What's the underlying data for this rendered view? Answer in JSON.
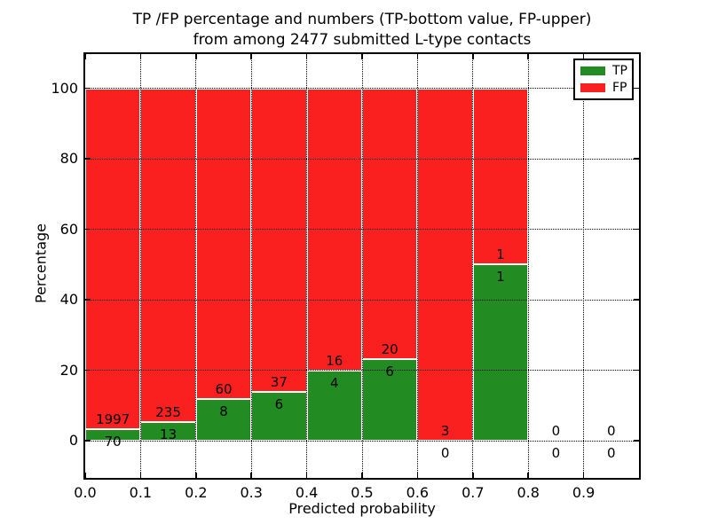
{
  "chart_data": {
    "type": "bar",
    "stacked": true,
    "title_line1": "TP /FP percentage and numbers (TP-bottom value, FP-upper)",
    "title_line2": "from among 2477 submitted L-type contacts",
    "total_contacts": 2477,
    "xlabel": "Predicted probability",
    "ylabel": "Percentage",
    "bins_left_edge": [
      0.0,
      0.1,
      0.2,
      0.3,
      0.4,
      0.5,
      0.6,
      0.7,
      0.8,
      0.9
    ],
    "bin_width": 0.1,
    "xtick_labels": [
      "0.0",
      "0.1",
      "0.2",
      "0.3",
      "0.4",
      "0.5",
      "0.6",
      "0.7",
      "0.8",
      "0.9"
    ],
    "yticks": [
      0,
      20,
      40,
      60,
      80,
      100
    ],
    "ytick_labels": [
      "0",
      "20",
      "40",
      "60",
      "80",
      "100"
    ],
    "xlim": [
      0.0,
      1.0
    ],
    "ylim": [
      -10.6,
      109.6
    ],
    "grid": "dotted",
    "legend_position": "upper-right",
    "legend": [
      "TP",
      "FP"
    ],
    "series": [
      {
        "name": "TP",
        "color": "#228b22",
        "counts": [
          70,
          13,
          8,
          6,
          4,
          6,
          0,
          1,
          0,
          0
        ],
        "percent": [
          3.39,
          5.24,
          11.76,
          13.95,
          20.0,
          23.08,
          0.0,
          50.0,
          0.0,
          0.0
        ]
      },
      {
        "name": "FP",
        "color": "#fb2020",
        "counts": [
          1997,
          235,
          60,
          37,
          16,
          20,
          3,
          1,
          0,
          0
        ],
        "percent": [
          96.61,
          94.76,
          88.24,
          86.05,
          80.0,
          76.92,
          100.0,
          50.0,
          0.0,
          0.0
        ]
      }
    ]
  }
}
